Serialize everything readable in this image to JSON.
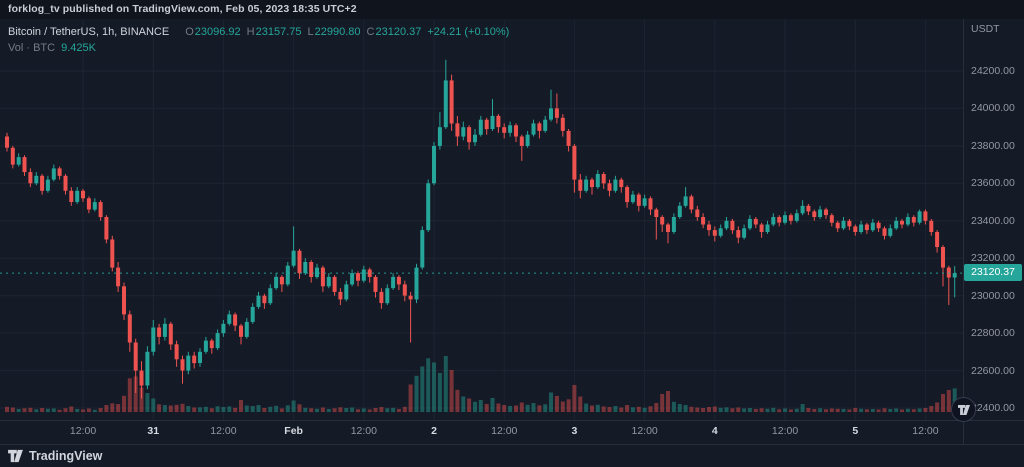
{
  "attribution": {
    "text": "forklog_tv published on TradingView.com, Feb 05, 2023 18:35 UTC+2"
  },
  "header": {
    "symbol": "Bitcoin / TetherUS, 1h, BINANCE",
    "ohlc": {
      "o_label": "O",
      "o": "23096.92",
      "h_label": "H",
      "h": "23157.75",
      "l_label": "L",
      "l": "22990.80",
      "c_label": "C",
      "c": "23120.37",
      "change": "+24.21 (+0.10%)"
    },
    "vol_label": "Vol · BTC",
    "vol_value": "9.425K"
  },
  "price_axis": {
    "currency": "USDT",
    "last_price": "23120.37"
  },
  "footer": {
    "brand": "TradingView"
  },
  "colors": {
    "up": "#26a69a",
    "down": "#ef5350",
    "bg": "#141a26",
    "grid": "#1e2431",
    "border": "#2a2e39",
    "axis_text": "#9598a1",
    "text": "#d1d4dc",
    "badge_text": "#ffffff"
  },
  "chart_data": {
    "type": "candlestick",
    "title": "Bitcoin / TetherUS",
    "symbol": "BTC/USDT",
    "exchange": "BINANCE",
    "interval": "1h",
    "ylabel": "USDT",
    "ylim": [
      22400,
      24200
    ],
    "grid": true,
    "legend_position": "top-left",
    "price_ticks": [
      24200,
      24000,
      23800,
      23600,
      23400,
      23200,
      23000,
      22800,
      22600,
      22400
    ],
    "time_ticks": [
      {
        "i": 13,
        "label": "12:00",
        "major": false
      },
      {
        "i": 25,
        "label": "31",
        "major": true
      },
      {
        "i": 37,
        "label": "12:00",
        "major": false
      },
      {
        "i": 49,
        "label": "Feb",
        "major": true
      },
      {
        "i": 61,
        "label": "12:00",
        "major": false
      },
      {
        "i": 73,
        "label": "2",
        "major": true
      },
      {
        "i": 85,
        "label": "12:00",
        "major": false
      },
      {
        "i": 97,
        "label": "3",
        "major": true
      },
      {
        "i": 109,
        "label": "12:00",
        "major": false
      },
      {
        "i": 121,
        "label": "4",
        "major": true
      },
      {
        "i": 133,
        "label": "12:00",
        "major": false
      },
      {
        "i": 145,
        "label": "5",
        "major": true
      },
      {
        "i": 157,
        "label": "12:00",
        "major": false
      }
    ],
    "last_bar": {
      "open": 23096.92,
      "high": 23157.75,
      "low": 22990.8,
      "close": 23120.37,
      "change": 24.21,
      "change_pct": 0.1,
      "volume_btc": 9425
    },
    "candles_format": [
      "open",
      "high",
      "low",
      "close",
      "volume"
    ],
    "candles": [
      [
        23850,
        23870,
        23770,
        23790,
        2100
      ],
      [
        23790,
        23800,
        23680,
        23700,
        1800
      ],
      [
        23700,
        23760,
        23690,
        23740,
        1200
      ],
      [
        23740,
        23750,
        23640,
        23660,
        1500
      ],
      [
        23660,
        23680,
        23580,
        23600,
        1700
      ],
      [
        23600,
        23660,
        23590,
        23640,
        1100
      ],
      [
        23640,
        23650,
        23540,
        23560,
        1600
      ],
      [
        23560,
        23640,
        23550,
        23620,
        1300
      ],
      [
        23620,
        23700,
        23610,
        23680,
        1400
      ],
      [
        23680,
        23690,
        23620,
        23640,
        900
      ],
      [
        23640,
        23650,
        23540,
        23560,
        1500
      ],
      [
        23560,
        23580,
        23480,
        23500,
        2200
      ],
      [
        23500,
        23580,
        23490,
        23560,
        1200
      ],
      [
        23560,
        23570,
        23500,
        23520,
        1000
      ],
      [
        23520,
        23530,
        23440,
        23460,
        1400
      ],
      [
        23460,
        23520,
        23450,
        23500,
        900
      ],
      [
        23500,
        23510,
        23400,
        23420,
        1600
      ],
      [
        23420,
        23430,
        23280,
        23300,
        2800
      ],
      [
        23300,
        23320,
        23130,
        23150,
        3500
      ],
      [
        23150,
        23180,
        23020,
        23050,
        3200
      ],
      [
        23050,
        23070,
        22870,
        22900,
        6500
      ],
      [
        22900,
        22920,
        22700,
        22750,
        13500
      ],
      [
        22750,
        22770,
        22480,
        22600,
        14200
      ],
      [
        22600,
        22650,
        22450,
        22520,
        9800
      ],
      [
        22520,
        22730,
        22500,
        22700,
        7600
      ],
      [
        22700,
        22870,
        22680,
        22830,
        5400
      ],
      [
        22830,
        22850,
        22740,
        22780,
        3100
      ],
      [
        22780,
        22880,
        22760,
        22850,
        2800
      ],
      [
        22850,
        22860,
        22710,
        22740,
        2600
      ],
      [
        22740,
        22760,
        22620,
        22660,
        2900
      ],
      [
        22660,
        22680,
        22530,
        22600,
        3300
      ],
      [
        22600,
        22700,
        22580,
        22680,
        2400
      ],
      [
        22680,
        22700,
        22610,
        22640,
        1800
      ],
      [
        22640,
        22720,
        22620,
        22700,
        1900
      ],
      [
        22700,
        22780,
        22690,
        22760,
        2100
      ],
      [
        22760,
        22770,
        22690,
        22720,
        1500
      ],
      [
        22720,
        22820,
        22710,
        22800,
        2300
      ],
      [
        22800,
        22870,
        22780,
        22850,
        2000
      ],
      [
        22850,
        22920,
        22840,
        22900,
        2200
      ],
      [
        22900,
        22910,
        22810,
        22840,
        1700
      ],
      [
        22840,
        22850,
        22740,
        22780,
        4800
      ],
      [
        22780,
        22880,
        22770,
        22860,
        2600
      ],
      [
        22860,
        22960,
        22850,
        22940,
        2400
      ],
      [
        22940,
        23020,
        22930,
        23000,
        2800
      ],
      [
        23000,
        23010,
        22930,
        22960,
        1600
      ],
      [
        22960,
        23060,
        22950,
        23040,
        2100
      ],
      [
        23040,
        23120,
        23030,
        23100,
        2500
      ],
      [
        23100,
        23110,
        23020,
        23060,
        1400
      ],
      [
        23060,
        23180,
        23050,
        23160,
        2700
      ],
      [
        23160,
        23370,
        23150,
        23240,
        4600
      ],
      [
        23240,
        23250,
        23090,
        23120,
        3100
      ],
      [
        23120,
        23200,
        23110,
        23180,
        1700
      ],
      [
        23180,
        23190,
        23070,
        23100,
        1500
      ],
      [
        23100,
        23170,
        23090,
        23150,
        1300
      ],
      [
        23150,
        23160,
        23020,
        23050,
        1800
      ],
      [
        23050,
        23120,
        23040,
        23100,
        1200
      ],
      [
        23100,
        23110,
        23000,
        23020,
        1500
      ],
      [
        23020,
        23040,
        22950,
        22980,
        1900
      ],
      [
        22980,
        23080,
        22970,
        23060,
        1600
      ],
      [
        23060,
        23140,
        23050,
        23120,
        1800
      ],
      [
        23120,
        23130,
        23050,
        23080,
        1100
      ],
      [
        23080,
        23160,
        23070,
        23140,
        1400
      ],
      [
        23140,
        23150,
        23070,
        23100,
        1000
      ],
      [
        23100,
        23110,
        22990,
        23020,
        1600
      ],
      [
        23020,
        23040,
        22930,
        22960,
        2000
      ],
      [
        22960,
        23060,
        22950,
        23040,
        1500
      ],
      [
        23040,
        23120,
        23030,
        23100,
        1700
      ],
      [
        23100,
        23110,
        23030,
        23060,
        1200
      ],
      [
        23060,
        23080,
        22970,
        23000,
        2100
      ],
      [
        23000,
        23020,
        22750,
        22980,
        11000
      ],
      [
        22980,
        23170,
        22960,
        23150,
        14500
      ],
      [
        23150,
        23370,
        23140,
        23350,
        18200
      ],
      [
        23350,
        23620,
        23340,
        23600,
        21500
      ],
      [
        23600,
        23820,
        23590,
        23800,
        19800
      ],
      [
        23800,
        23980,
        23780,
        23900,
        15600
      ],
      [
        23900,
        24260,
        23890,
        24150,
        22400
      ],
      [
        24150,
        24180,
        23880,
        23920,
        16800
      ],
      [
        23920,
        23960,
        23800,
        23850,
        8900
      ],
      [
        23850,
        23930,
        23830,
        23900,
        6200
      ],
      [
        23900,
        23910,
        23780,
        23820,
        5400
      ],
      [
        23820,
        23890,
        23800,
        23860,
        4100
      ],
      [
        23860,
        23960,
        23850,
        23940,
        4800
      ],
      [
        23940,
        23950,
        23860,
        23890,
        3200
      ],
      [
        23890,
        24050,
        23880,
        23960,
        5600
      ],
      [
        23960,
        23970,
        23870,
        23900,
        3400
      ],
      [
        23900,
        23920,
        23840,
        23870,
        2800
      ],
      [
        23870,
        23930,
        23850,
        23910,
        2400
      ],
      [
        23910,
        23920,
        23820,
        23850,
        2600
      ],
      [
        23850,
        23860,
        23720,
        23800,
        3800
      ],
      [
        23800,
        23880,
        23790,
        23860,
        2900
      ],
      [
        23860,
        23940,
        23850,
        23920,
        3600
      ],
      [
        23920,
        23930,
        23840,
        23880,
        2700
      ],
      [
        23880,
        23960,
        23870,
        23940,
        3100
      ],
      [
        23940,
        24100,
        23930,
        24000,
        7800
      ],
      [
        24000,
        24080,
        23920,
        23950,
        6400
      ],
      [
        23950,
        23970,
        23850,
        23880,
        4200
      ],
      [
        23880,
        23890,
        23770,
        23800,
        5100
      ],
      [
        23800,
        23810,
        23550,
        23620,
        10800
      ],
      [
        23620,
        23650,
        23520,
        23560,
        6200
      ],
      [
        23560,
        23640,
        23550,
        23620,
        3400
      ],
      [
        23620,
        23630,
        23540,
        23580,
        2600
      ],
      [
        23580,
        23670,
        23570,
        23650,
        2900
      ],
      [
        23650,
        23660,
        23570,
        23600,
        2200
      ],
      [
        23600,
        23620,
        23530,
        23560,
        2000
      ],
      [
        23560,
        23640,
        23550,
        23620,
        2400
      ],
      [
        23620,
        23630,
        23550,
        23580,
        1800
      ],
      [
        23580,
        23590,
        23470,
        23500,
        2800
      ],
      [
        23500,
        23560,
        23490,
        23540,
        1900
      ],
      [
        23540,
        23550,
        23450,
        23480,
        2100
      ],
      [
        23480,
        23540,
        23470,
        23520,
        1700
      ],
      [
        23520,
        23530,
        23430,
        23460,
        2300
      ],
      [
        23460,
        23470,
        23300,
        23420,
        3600
      ],
      [
        23420,
        23430,
        23340,
        23380,
        7200
      ],
      [
        23380,
        23390,
        23280,
        23340,
        8400
      ],
      [
        23340,
        23440,
        23330,
        23420,
        4100
      ],
      [
        23420,
        23500,
        23410,
        23480,
        3200
      ],
      [
        23480,
        23580,
        23470,
        23530,
        2800
      ],
      [
        23530,
        23540,
        23440,
        23460,
        2100
      ],
      [
        23460,
        23480,
        23400,
        23420,
        1800
      ],
      [
        23420,
        23440,
        23360,
        23380,
        1600
      ],
      [
        23380,
        23400,
        23320,
        23350,
        2000
      ],
      [
        23350,
        23370,
        23290,
        23320,
        2200
      ],
      [
        23320,
        23380,
        23310,
        23360,
        1700
      ],
      [
        23360,
        23420,
        23350,
        23400,
        1900
      ],
      [
        23400,
        23410,
        23330,
        23350,
        1500
      ],
      [
        23350,
        23370,
        23280,
        23310,
        1800
      ],
      [
        23310,
        23380,
        23300,
        23360,
        1400
      ],
      [
        23360,
        23430,
        23350,
        23410,
        1600
      ],
      [
        23410,
        23420,
        23360,
        23380,
        1200
      ],
      [
        23380,
        23390,
        23310,
        23340,
        1500
      ],
      [
        23340,
        23400,
        23330,
        23380,
        1300
      ],
      [
        23380,
        23440,
        23370,
        23420,
        1700
      ],
      [
        23420,
        23430,
        23370,
        23390,
        1100
      ],
      [
        23390,
        23450,
        23380,
        23430,
        1400
      ],
      [
        23430,
        23440,
        23380,
        23400,
        1000
      ],
      [
        23400,
        23460,
        23390,
        23440,
        1300
      ],
      [
        23440,
        23510,
        23430,
        23480,
        3200
      ],
      [
        23480,
        23490,
        23430,
        23450,
        1600
      ],
      [
        23450,
        23460,
        23400,
        23420,
        1200
      ],
      [
        23420,
        23480,
        23410,
        23460,
        1500
      ],
      [
        23460,
        23470,
        23410,
        23430,
        1100
      ],
      [
        23430,
        23440,
        23370,
        23390,
        1400
      ],
      [
        23390,
        23400,
        23340,
        23360,
        1300
      ],
      [
        23360,
        23420,
        23350,
        23400,
        1200
      ],
      [
        23400,
        23410,
        23350,
        23370,
        1000
      ],
      [
        23370,
        23380,
        23320,
        23340,
        1600
      ],
      [
        23340,
        23400,
        23330,
        23380,
        1300
      ],
      [
        23380,
        23390,
        23330,
        23350,
        1100
      ],
      [
        23350,
        23410,
        23340,
        23390,
        1200
      ],
      [
        23390,
        23400,
        23340,
        23360,
        1000
      ],
      [
        23360,
        23370,
        23300,
        23320,
        1500
      ],
      [
        23320,
        23380,
        23310,
        23360,
        1200
      ],
      [
        23360,
        23420,
        23350,
        23400,
        1400
      ],
      [
        23400,
        23410,
        23360,
        23380,
        1000
      ],
      [
        23380,
        23440,
        23370,
        23420,
        1300
      ],
      [
        23420,
        23430,
        23370,
        23390,
        1100
      ],
      [
        23390,
        23460,
        23380,
        23450,
        1400
      ],
      [
        23450,
        23460,
        23380,
        23400,
        1600
      ],
      [
        23400,
        23410,
        23320,
        23340,
        2400
      ],
      [
        23340,
        23350,
        23230,
        23260,
        3800
      ],
      [
        23260,
        23270,
        23050,
        23150,
        7200
      ],
      [
        23150,
        23160,
        22950,
        23097,
        8800
      ],
      [
        23096.92,
        23157.75,
        22990.8,
        23120.37,
        9425
      ]
    ]
  }
}
